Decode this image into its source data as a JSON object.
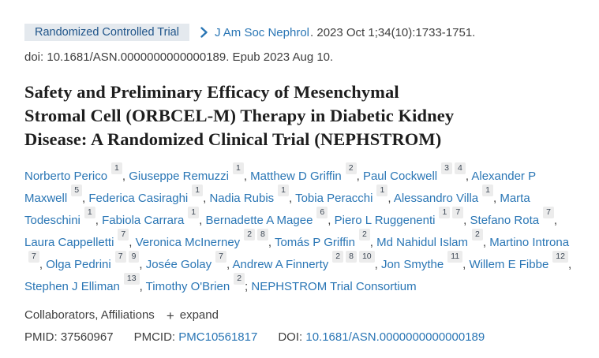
{
  "colors": {
    "link_blue": "#2a76b5",
    "badge_bg": "#e4e9ee",
    "badge_text": "#20558a",
    "text_dark": "#1e1e1e",
    "text_mid": "#3f3f3f",
    "sup_bg": "#ececec",
    "sup_text": "#3d4855"
  },
  "header": {
    "badge": "Randomized Controlled Trial",
    "chevron_icon": "chevron-right",
    "journal": "J Am Soc Nephrol",
    "citation": ". 2023 Oct 1;34(10):1733-1751.",
    "doi_line": "doi: 10.1681/ASN.0000000000000189. Epub 2023 Aug 10."
  },
  "title": {
    "full": "Safety and Preliminary Efficacy of Mesenchymal Stromal Cell (ORBCEL-M) Therapy in Diabetic Kidney Disease: A Randomized Clinical Trial (NEPHSTROM)",
    "lines": [
      "Safety and Preliminary Efficacy of Mesenchymal",
      "Stromal Cell (ORBCEL-M) Therapy in Diabetic Kidney",
      "Disease: A Randomized Clinical Trial (NEPHSTROM)"
    ]
  },
  "authors": {
    "items": [
      {
        "name": "Norberto Perico",
        "sups": [
          "1"
        ],
        "sep": ", "
      },
      {
        "name": "Giuseppe Remuzzi",
        "sups": [
          "1"
        ],
        "sep": ", "
      },
      {
        "name": "Matthew D Griffin",
        "sups": [
          "2"
        ],
        "sep": ", "
      },
      {
        "name": "Paul Cockwell",
        "sups": [
          "3",
          "4"
        ],
        "sep": ", "
      },
      {
        "name": "Alexander P Maxwell",
        "sups": [
          "5"
        ],
        "sep": ", "
      },
      {
        "name": "Federica Casiraghi",
        "sups": [
          "1"
        ],
        "sep": ", "
      },
      {
        "name": "Nadia Rubis",
        "sups": [
          "1"
        ],
        "sep": ", "
      },
      {
        "name": "Tobia Peracchi",
        "sups": [
          "1"
        ],
        "sep": ", "
      },
      {
        "name": "Alessandro Villa",
        "sups": [
          "1"
        ],
        "sep": ", "
      },
      {
        "name": "Marta Todeschini",
        "sups": [
          "1"
        ],
        "sep": ", "
      },
      {
        "name": "Fabiola Carrara",
        "sups": [
          "1"
        ],
        "sep": ", "
      },
      {
        "name": "Bernadette A Magee",
        "sups": [
          "6"
        ],
        "sep": ", "
      },
      {
        "name": "Piero L Ruggenenti",
        "sups": [
          "1",
          "7"
        ],
        "sep": ", "
      },
      {
        "name": "Stefano Rota",
        "sups": [
          "7"
        ],
        "sep": ", "
      },
      {
        "name": "Laura Cappelletti",
        "sups": [
          "7"
        ],
        "sep": ", "
      },
      {
        "name": "Veronica McInerney",
        "sups": [
          "2",
          "8"
        ],
        "sep": ", "
      },
      {
        "name": "Tomás P Griffin",
        "sups": [
          "2"
        ],
        "sep": ", "
      },
      {
        "name": "Md Nahidul Islam",
        "sups": [
          "2"
        ],
        "sep": ", "
      },
      {
        "name": "Martino Introna",
        "sups": [
          "7"
        ],
        "sep": ", "
      },
      {
        "name": "Olga Pedrini",
        "sups": [
          "7",
          "9"
        ],
        "sep": ", "
      },
      {
        "name": "Josée Golay",
        "sups": [
          "7"
        ],
        "sep": ", "
      },
      {
        "name": "Andrew A Finnerty",
        "sups": [
          "2",
          "8",
          "10"
        ],
        "sep": ", "
      },
      {
        "name": "Jon Smythe",
        "sups": [
          "11"
        ],
        "sep": ", "
      },
      {
        "name": "Willem E Fibbe",
        "sups": [
          "12"
        ],
        "sep": ", "
      },
      {
        "name": "Stephen J Elliman",
        "sups": [
          "13"
        ],
        "sep": ", "
      },
      {
        "name": "Timothy O'Brien",
        "sups": [
          "2"
        ],
        "sep": "; "
      },
      {
        "name": "NEPHSTROM Trial Consortium",
        "sups": [],
        "sep": "",
        "group": true
      }
    ]
  },
  "collaborators": {
    "label": "Collaborators, Affiliations",
    "plus": "+",
    "expand_label": "expand"
  },
  "identifiers": {
    "pmid_label": "PMID:",
    "pmid": "37560967",
    "pmcid_label": "PMCID:",
    "pmcid": "PMC10561817",
    "doi_label": "DOI:",
    "doi": "10.1681/ASN.0000000000000189"
  }
}
